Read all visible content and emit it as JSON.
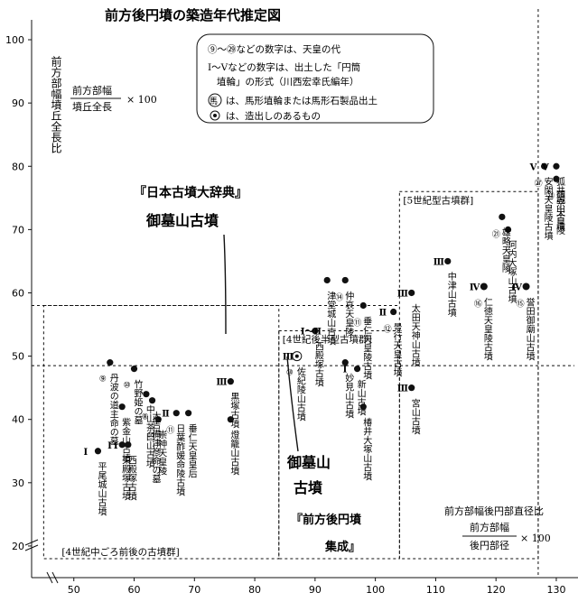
{
  "chart_data": {
    "type": "scatter",
    "title": "前方後円墳の築造年代推定図",
    "ylabel": "前方部幅墳丘全長比",
    "ylabel_formula_num": "前方部幅",
    "ylabel_formula_den": "墳丘全長",
    "ylabel_formula_mult": "× 100",
    "xlabel": "前方部幅後円部直径比",
    "xlabel_formula_num": "前方部幅",
    "xlabel_formula_den": "後円部径",
    "xlabel_formula_mult": "× 100",
    "x_ticks": [
      "50",
      "60",
      "70",
      "80",
      "90",
      "100",
      "110",
      "120",
      "130"
    ],
    "y_ticks": [
      "20",
      "30",
      "40",
      "50",
      "60",
      "70",
      "80",
      "90",
      "100"
    ],
    "xlim": [
      43,
      133
    ],
    "ylim": [
      15,
      102
    ],
    "reference_lines": {
      "horizontal_y": [
        58,
        48.5
      ],
      "vertical_x": [
        127
      ]
    },
    "groups": [
      {
        "label": "[4世紀中ごろ前後の古墳群]",
        "x_range": [
          45,
          84
        ],
        "y_range": [
          18,
          58
        ]
      },
      {
        "label": "[4世紀後半型古墳群]",
        "x_range": [
          84,
          104
        ],
        "y_range": [
          18,
          54
        ]
      },
      {
        "label": "[5世紀型古墳群]",
        "x_range": [
          104,
          127
        ],
        "y_range": [
          18,
          76
        ]
      }
    ],
    "legend": [
      "⑨〜㉙などの数字は、天皇の代",
      "Ⅰ〜Ⅴなどの数字は、出土した「円筒",
      "埴輪」の形式（川西宏幸氏編年）",
      "は、馬形埴輪または馬形石製品出土",
      "は、造出しのあるもの"
    ],
    "legend_horse_mark": "馬",
    "points": [
      {
        "label": "平尾城山古墳",
        "x": 54,
        "y": 35,
        "emperor": "",
        "haniwa": "Ⅰ",
        "feature": ""
      },
      {
        "label": "丹波の道主命の墓",
        "x": 56,
        "y": 49,
        "emperor": "⑨",
        "haniwa": "",
        "feature": ""
      },
      {
        "label": "紫金山古墳",
        "x": 58,
        "y": 42,
        "emperor": "",
        "haniwa": "",
        "feature": ""
      },
      {
        "label": "東殿塚古墳",
        "x": 58,
        "y": 36,
        "emperor": "",
        "haniwa": "Ⅰ",
        "feature": ""
      },
      {
        "label": "西殿塚古墳",
        "x": 59,
        "y": 36,
        "emperor": "",
        "haniwa": "Ⅰ",
        "feature": ""
      },
      {
        "label": "竹野姫の墓",
        "x": 60,
        "y": 48,
        "emperor": "⑩",
        "haniwa": "",
        "feature": ""
      },
      {
        "label": "中山茶臼山古墳",
        "x": 62,
        "y": 44,
        "emperor": "",
        "haniwa": "",
        "feature": ""
      },
      {
        "label": "崇神天皇陵",
        "x": 64,
        "y": 40,
        "emperor": "⑩",
        "haniwa": "",
        "feature": ""
      },
      {
        "label": "大吉備津彦命の墓",
        "x": 63,
        "y": 43,
        "emperor": "⑧",
        "haniwa": "",
        "feature": ""
      },
      {
        "label": "日葉酢媛命陵古墳",
        "x": 67,
        "y": 41,
        "emperor": "⑪",
        "haniwa": "Ⅱ",
        "feature": ""
      },
      {
        "label": "垂仁天皇皇后",
        "x": 69,
        "y": 41,
        "emperor": "",
        "haniwa": "",
        "feature": ""
      },
      {
        "label": "黒塚古墳",
        "x": 76,
        "y": 46,
        "emperor": "",
        "haniwa": "Ⅲ",
        "feature": ""
      },
      {
        "label": "燈籠山古墳",
        "x": 76,
        "y": 40,
        "emperor": "",
        "haniwa": "",
        "feature": ""
      },
      {
        "label": "佐紀陵山古墳",
        "x": 87,
        "y": 50,
        "emperor": "⑩",
        "haniwa": "Ⅲ",
        "feature": "造出し"
      },
      {
        "label": "西殿塚古墳",
        "x": 90,
        "y": 54,
        "emperor": "",
        "haniwa": "Ⅰ〜Ⅱ",
        "feature": ""
      },
      {
        "label": "津堂城山古墳",
        "x": 92,
        "y": 62,
        "emperor": "",
        "haniwa": "",
        "feature": ""
      },
      {
        "label": "仲哀天皇陵",
        "x": 95,
        "y": 62,
        "emperor": "⑭",
        "haniwa": "",
        "feature": ""
      },
      {
        "label": "垂仁天皇陵古墳",
        "x": 98,
        "y": 58,
        "emperor": "⑪",
        "haniwa": "",
        "feature": ""
      },
      {
        "label": "妙見山古墳",
        "x": 95,
        "y": 49,
        "emperor": "",
        "haniwa": "",
        "feature": ""
      },
      {
        "label": "新山古墳",
        "x": 97,
        "y": 48,
        "emperor": "",
        "haniwa": "Ⅰ",
        "feature": ""
      },
      {
        "label": "椿井大塚山古墳",
        "x": 98,
        "y": 42,
        "emperor": "",
        "haniwa": "",
        "feature": ""
      },
      {
        "label": "景行天皇古墳",
        "x": 103,
        "y": 57,
        "emperor": "⑫",
        "haniwa": "Ⅱ",
        "feature": ""
      },
      {
        "label": "太田天神山古墳",
        "x": 106,
        "y": 60,
        "emperor": "",
        "haniwa": "Ⅲ",
        "feature": ""
      },
      {
        "label": "宮山古墳",
        "x": 106,
        "y": 45,
        "emperor": "",
        "haniwa": "Ⅲ",
        "feature": ""
      },
      {
        "label": "中津山古墳",
        "x": 112,
        "y": 65,
        "emperor": "",
        "haniwa": "Ⅲ",
        "feature": ""
      },
      {
        "label": "仁徳天皇陵古墳",
        "x": 118,
        "y": 61,
        "emperor": "⑯",
        "haniwa": "Ⅳ",
        "feature": "馬"
      },
      {
        "label": "河内大塚山古墳",
        "x": 122,
        "y": 70,
        "emperor": "",
        "haniwa": "",
        "feature": ""
      },
      {
        "label": "雄略天皇陵",
        "x": 121,
        "y": 72,
        "emperor": "㉑",
        "haniwa": "",
        "feature": ""
      },
      {
        "label": "誉田御廟山古墳",
        "x": 125,
        "y": 61,
        "emperor": "⑮",
        "haniwa": "Ⅳ",
        "feature": "馬"
      },
      {
        "label": "安閑天皇陵古墳",
        "x": 128,
        "y": 80,
        "emperor": "㉗",
        "haniwa": "Ⅴ",
        "feature": ""
      },
      {
        "label": "狐井城山古墳",
        "x": 130,
        "y": 80,
        "emperor": "",
        "haniwa": "Ⅴ",
        "feature": ""
      },
      {
        "label": "顕宗天皇陵",
        "x": 130,
        "y": 78,
        "emperor": "㉓",
        "haniwa": "",
        "feature": ""
      }
    ]
  }
}
